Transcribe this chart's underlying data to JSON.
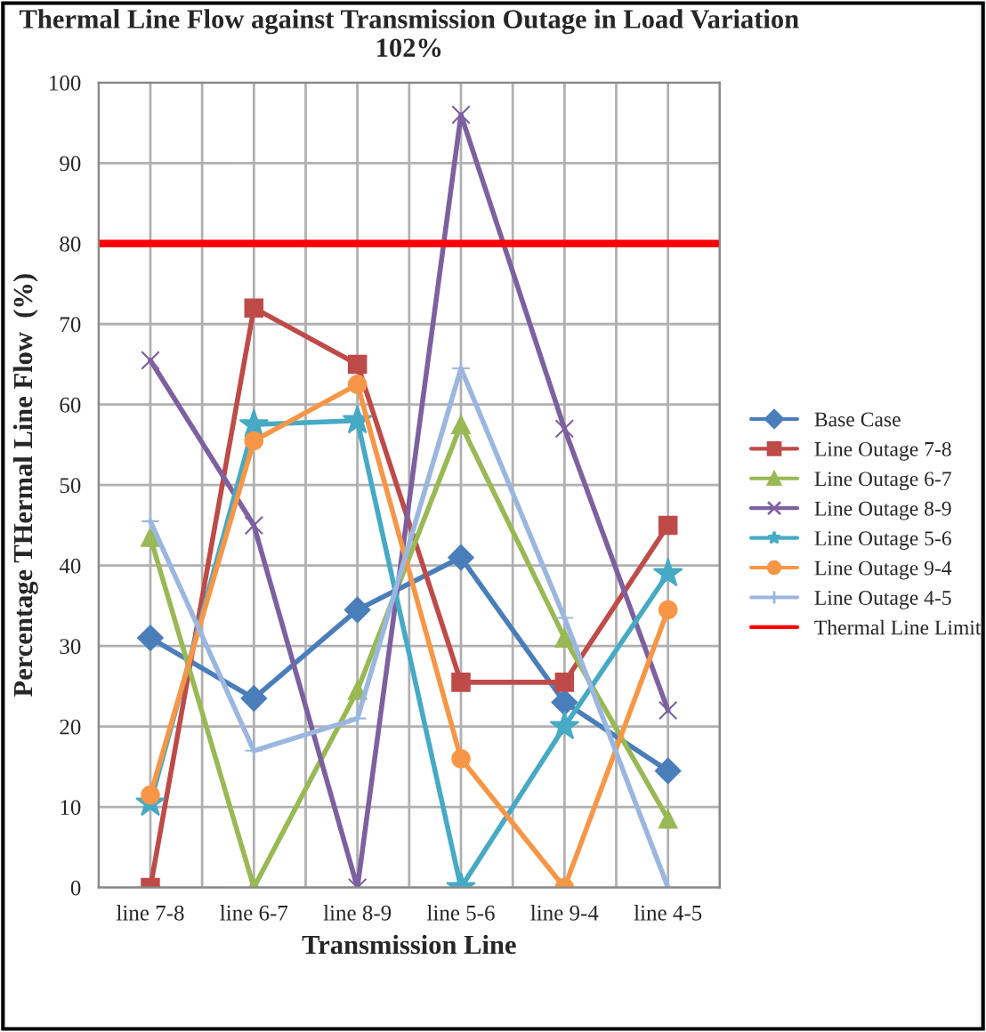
{
  "chart_data": {
    "type": "line",
    "title": "Thermal Line Flow against Transmission Outage in Load Variation 102%",
    "xlabel": "Transmission Line",
    "ylabel": "Percentage THermal Line Flow  (%)",
    "categories": [
      "line 7-8",
      "line 6-7",
      "line 8-9",
      "line 5-6",
      "line 9-4",
      "line 4-5"
    ],
    "series": [
      {
        "name": "Base Case",
        "color": "#4a7ebb",
        "marker": "diamond",
        "values": [
          31,
          23.5,
          34.5,
          41,
          23,
          14.5
        ]
      },
      {
        "name": "Line Outage 7-8",
        "color": "#be4b48",
        "marker": "square",
        "values": [
          0,
          72,
          65,
          25.5,
          25.5,
          45
        ]
      },
      {
        "name": "Line Outage 6-7",
        "color": "#98b954",
        "marker": "triangle",
        "values": [
          43.5,
          0,
          24.5,
          57.5,
          31,
          8.5
        ]
      },
      {
        "name": "Line Outage 8-9",
        "color": "#7d60a0",
        "marker": "cross",
        "values": [
          65.5,
          45,
          0,
          96,
          57,
          22
        ]
      },
      {
        "name": "Line Outage 5-6",
        "color": "#46aac5",
        "marker": "star",
        "values": [
          10.5,
          57.5,
          58,
          0,
          20,
          39
        ]
      },
      {
        "name": "Line Outage 9-4",
        "color": "#f79646",
        "marker": "circle",
        "values": [
          11.5,
          55.5,
          62.5,
          16,
          0,
          34.5
        ]
      },
      {
        "name": "Line Outage 4-5",
        "color": "#9bb7e0",
        "marker": "plus",
        "values": [
          45.5,
          17,
          21,
          64.5,
          33.5,
          0
        ]
      }
    ],
    "ref_lines": [
      {
        "axis": "y",
        "value": 80,
        "label": "Thermal Line Limit",
        "color": "#ff0000"
      }
    ],
    "ylim": [
      0,
      100
    ],
    "yticks": [
      0,
      10,
      20,
      30,
      40,
      50,
      60,
      70,
      80,
      90,
      100
    ],
    "grid": true,
    "legend": "right"
  }
}
